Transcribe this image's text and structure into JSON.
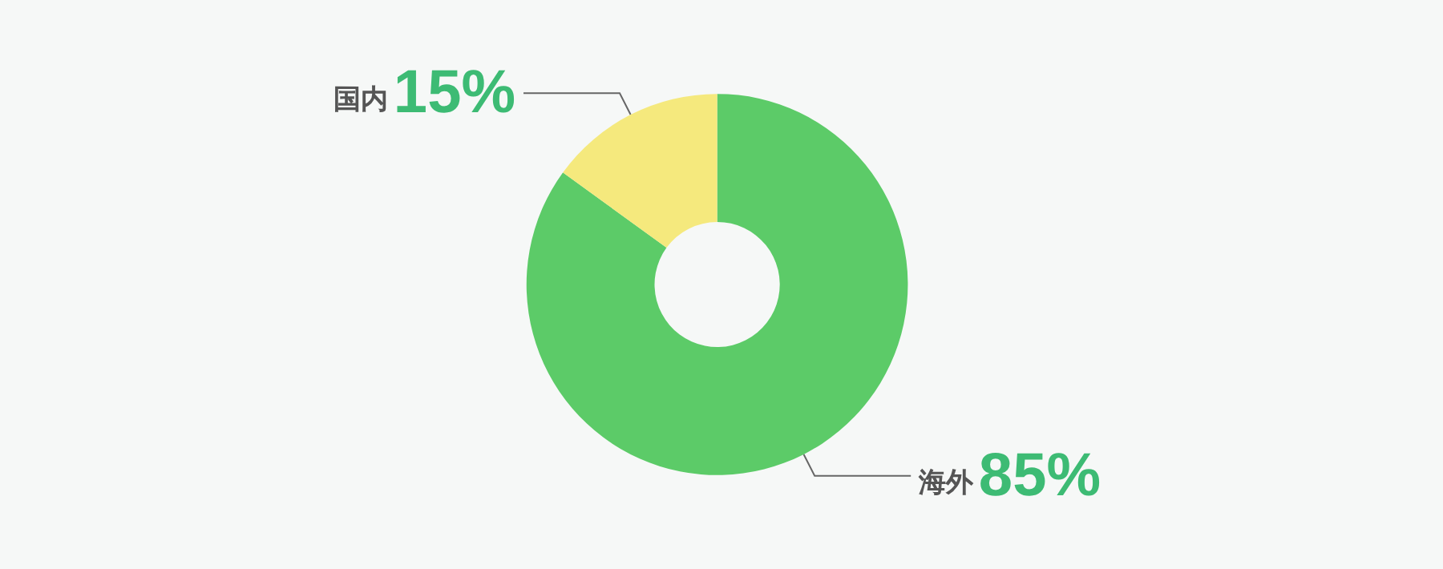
{
  "chart_data": {
    "type": "donut",
    "categories": [
      "海外",
      "国内"
    ],
    "values": [
      85,
      15
    ],
    "colors": [
      "#5ccb68",
      "#f5e97d"
    ],
    "value_labels": [
      "85%",
      "15%"
    ]
  }
}
